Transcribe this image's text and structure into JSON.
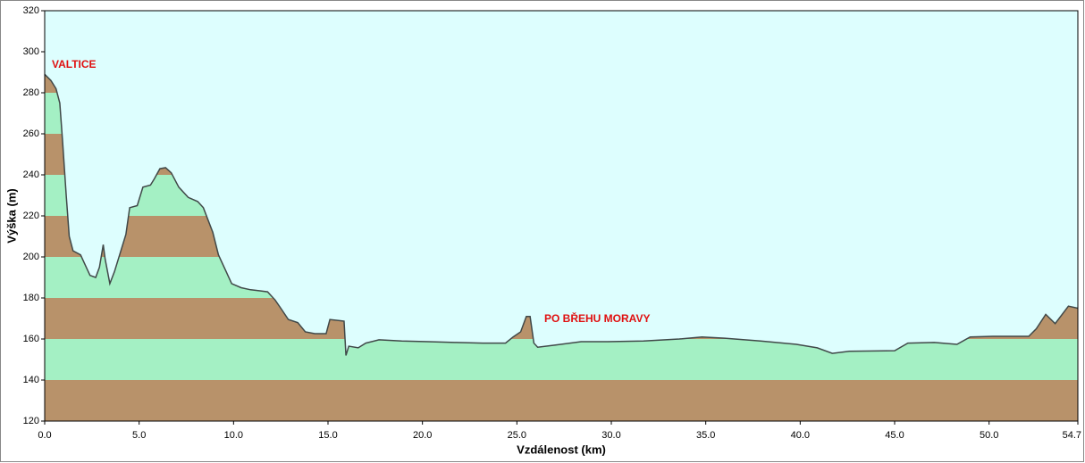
{
  "chart_data": {
    "type": "area",
    "x_label": "Vzdálenost   (km)",
    "y_label": "Výška (m)",
    "annotations": [
      "VALTICE",
      "PO BŘEHU MORAVY"
    ],
    "x": [
      0,
      0.33,
      0.6,
      0.8,
      0.95,
      1.14,
      1.3,
      1.5,
      1.9,
      2.1,
      2.4,
      2.7,
      2.9,
      3.1,
      3.2,
      3.45,
      3.7,
      3.9,
      4.3,
      4.5,
      4.9,
      5.2,
      5.6,
      5.8,
      6.1,
      6.4,
      6.7,
      7.1,
      7.6,
      8.1,
      8.4,
      8.9,
      9.2,
      9.6,
      9.9,
      10.4,
      10.9,
      11.4,
      11.8,
      12.2,
      12.5,
      12.9,
      13.4,
      13.8,
      14.3,
      14.7,
      14.9,
      15.1,
      15.85,
      15.95,
      16.1,
      16.6,
      17.0,
      17.7,
      18.9,
      20.3,
      21.8,
      23.2,
      24.4,
      24.8,
      25.2,
      25.5,
      25.7,
      25.9,
      26.1,
      27.0,
      28.4,
      29.8,
      31.7,
      33.6,
      34.8,
      36.0,
      37.9,
      39.8,
      40.9,
      41.7,
      42.6,
      45.0,
      45.7,
      47.1,
      48.3,
      49.0,
      50.2,
      52.1,
      52.5,
      53.0,
      53.5,
      54.2,
      54.7
    ],
    "values": [
      289,
      286,
      282,
      275,
      256,
      230,
      210,
      203,
      201,
      197,
      191,
      190,
      195,
      206,
      199,
      187,
      193,
      199,
      211,
      224,
      225,
      234,
      235,
      238,
      243,
      243.5,
      241,
      234,
      229,
      227,
      224,
      212,
      201,
      193,
      187,
      185,
      184,
      183.5,
      183,
      179,
      175,
      169.5,
      168,
      163.5,
      162.6,
      162.6,
      162.6,
      169.5,
      168.7,
      152,
      156.5,
      155.7,
      158,
      159.6,
      159,
      158.7,
      158.3,
      158,
      158,
      161,
      163.5,
      171,
      171,
      158,
      156,
      157,
      158.7,
      158.7,
      159,
      160,
      161,
      160.4,
      159,
      157.4,
      155.7,
      153,
      154,
      154.3,
      158,
      158.3,
      157.4,
      161,
      161.3,
      161.3,
      165,
      172,
      167.5,
      176,
      175
    ],
    "color": "#404848",
    "band_colors": [
      "#b8926a",
      "#a4f0c4"
    ],
    "background": "#ddfefe",
    "xlim": [
      0,
      54.7
    ],
    "ylim": [
      120,
      320
    ],
    "xticks": [
      {
        "value": 0,
        "label": "0.0"
      },
      {
        "value": 5,
        "label": "5.0"
      },
      {
        "value": 10,
        "label": "10.0"
      },
      {
        "value": 15,
        "label": "15.0"
      },
      {
        "value": 20,
        "label": "20.0"
      },
      {
        "value": 25,
        "label": "25.0"
      },
      {
        "value": 30,
        "label": "30.0"
      },
      {
        "value": 35,
        "label": "35.0"
      },
      {
        "value": 40,
        "label": "40.0"
      },
      {
        "value": 45,
        "label": "45.0"
      },
      {
        "value": 50,
        "label": "50.0"
      },
      {
        "value": 54.7,
        "label": "54.7"
      }
    ],
    "yticks": [
      120,
      140,
      160,
      180,
      200,
      220,
      240,
      260,
      280,
      300,
      320
    ]
  }
}
